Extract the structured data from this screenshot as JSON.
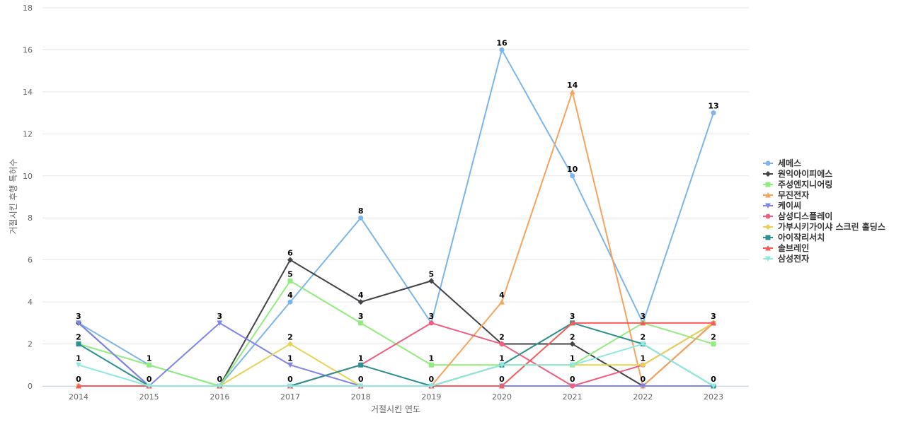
{
  "chart_data": {
    "type": "line",
    "title": "",
    "xlabel": "거절시킨 연도",
    "ylabel": "거절시킨 후행 특허수",
    "x": [
      "2014",
      "2015",
      "2016",
      "2017",
      "2018",
      "2019",
      "2020",
      "2021",
      "2022",
      "2023"
    ],
    "ylim": [
      0,
      18
    ],
    "yticks": [
      0,
      2,
      4,
      6,
      8,
      10,
      12,
      14,
      16,
      18
    ],
    "grid": true,
    "legend_position": "right",
    "series": [
      {
        "name": "세메스",
        "color": "#7cb5ec",
        "marker": "circle",
        "values": [
          3,
          1,
          0,
          4,
          8,
          3,
          16,
          10,
          3,
          13
        ],
        "labels": [
          null,
          null,
          null,
          4,
          8,
          null,
          16,
          10,
          null,
          13
        ]
      },
      {
        "name": "원익아이피에스",
        "color": "#434348",
        "marker": "diamond",
        "values": [
          3,
          0,
          0,
          6,
          4,
          5,
          2,
          2,
          0,
          3
        ],
        "labels": [
          null,
          null,
          null,
          6,
          4,
          5,
          2,
          2,
          0,
          null
        ]
      },
      {
        "name": "주성엔지니어링",
        "color": "#90ed7d",
        "marker": "square",
        "values": [
          2,
          1,
          0,
          5,
          3,
          1,
          1,
          1,
          3,
          2
        ],
        "labels": [
          2,
          1,
          null,
          5,
          3,
          1,
          null,
          null,
          null,
          2
        ]
      },
      {
        "name": "무진전자",
        "color": "#f7a35c",
        "marker": "triangle",
        "values": [
          0,
          0,
          0,
          0,
          0,
          0,
          4,
          14,
          0,
          3
        ],
        "labels": [
          null,
          null,
          null,
          null,
          null,
          null,
          4,
          14,
          null,
          null
        ]
      },
      {
        "name": "케이씨",
        "color": "#8085e9",
        "marker": "triangle-down",
        "values": [
          3,
          0,
          3,
          1,
          0,
          0,
          0,
          0,
          0,
          0
        ],
        "labels": [
          3,
          null,
          3,
          1,
          null,
          null,
          null,
          null,
          null,
          null
        ]
      },
      {
        "name": "삼성디스플레이",
        "color": "#f15c80",
        "marker": "circle",
        "values": [
          0,
          0,
          0,
          0,
          1,
          3,
          2,
          0,
          1,
          3
        ],
        "labels": [
          null,
          null,
          null,
          null,
          null,
          3,
          null,
          0,
          1,
          3
        ]
      },
      {
        "name": "가부시키가이샤 스크린 홀딩스",
        "color": "#e4d354",
        "marker": "diamond",
        "values": [
          0,
          0,
          0,
          2,
          0,
          0,
          1,
          1,
          1,
          3
        ],
        "labels": [
          null,
          null,
          null,
          2,
          0,
          0,
          null,
          null,
          null,
          null
        ]
      },
      {
        "name": "아이작리서치",
        "color": "#2b908f",
        "marker": "square",
        "values": [
          2,
          0,
          0,
          0,
          1,
          0,
          1,
          3,
          2,
          0
        ],
        "labels": [
          null,
          0,
          0,
          0,
          1,
          null,
          1,
          3,
          null,
          0
        ]
      },
      {
        "name": "솔브레인",
        "color": "#f45b5b",
        "marker": "triangle",
        "values": [
          0,
          0,
          0,
          0,
          0,
          0,
          0,
          3,
          3,
          3
        ],
        "labels": [
          0,
          null,
          null,
          null,
          null,
          null,
          0,
          null,
          3,
          null
        ]
      },
      {
        "name": "삼성전자",
        "color": "#91e8e1",
        "marker": "triangle-down",
        "values": [
          1,
          0,
          0,
          0,
          0,
          0,
          1,
          1,
          2,
          0
        ],
        "labels": [
          1,
          null,
          null,
          null,
          null,
          null,
          null,
          1,
          2,
          null
        ]
      }
    ]
  }
}
